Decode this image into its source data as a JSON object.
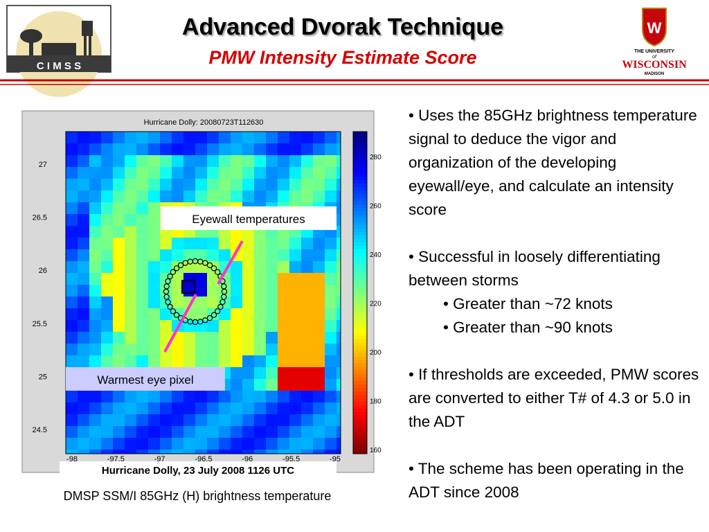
{
  "header": {
    "title": "Advanced Dvorak Technique",
    "subtitle": "PMW Intensity Estimate Score",
    "left_logo": "C I M S S",
    "right_logo": {
      "line1": "THE UNIVERSITY",
      "line2": "of",
      "name": "WISCONSIN",
      "line3": "MADISON"
    }
  },
  "figure": {
    "plot_title": "Hurricane Dolly: 20080723T112630",
    "y_labels": [
      "27",
      "26.5",
      "26",
      "25.5",
      "25",
      "24.5"
    ],
    "x_labels": [
      "-98",
      "-97.5",
      "-97",
      "-96.5",
      "-96",
      "-95.5",
      "-95"
    ],
    "colorbar_labels": [
      "280",
      "260",
      "240",
      "220",
      "200",
      "180",
      "160"
    ],
    "annotations": [
      "Eyewall temperatures",
      "Warmest eye pixel"
    ],
    "caption_title": "Hurricane Dolly, 23 July 2008 1126 UTC",
    "caption": "DMSP SSM/I 85GHz (H) brightness temperature"
  },
  "bullets": [
    {
      "text": "• Uses the 85GHz brightness temperature signal to deduce the vigor and organization of the developing eyewall/eye, and calculate an intensity score",
      "level": 1
    },
    {
      "text": "• Successful in loosely differentiating between storms",
      "level": 1
    },
    {
      "text": "• Greater than ~72 knots",
      "level": 2
    },
    {
      "text": "• Greater than ~90 knots",
      "level": 2
    },
    {
      "text": "• If thresholds are exceeded, PMW scores are converted to either T# of 4.3 or 5.0 in the ADT",
      "level": 1
    },
    {
      "text": "• The scheme has been operating in the ADT since 2008",
      "level": 1
    }
  ]
}
